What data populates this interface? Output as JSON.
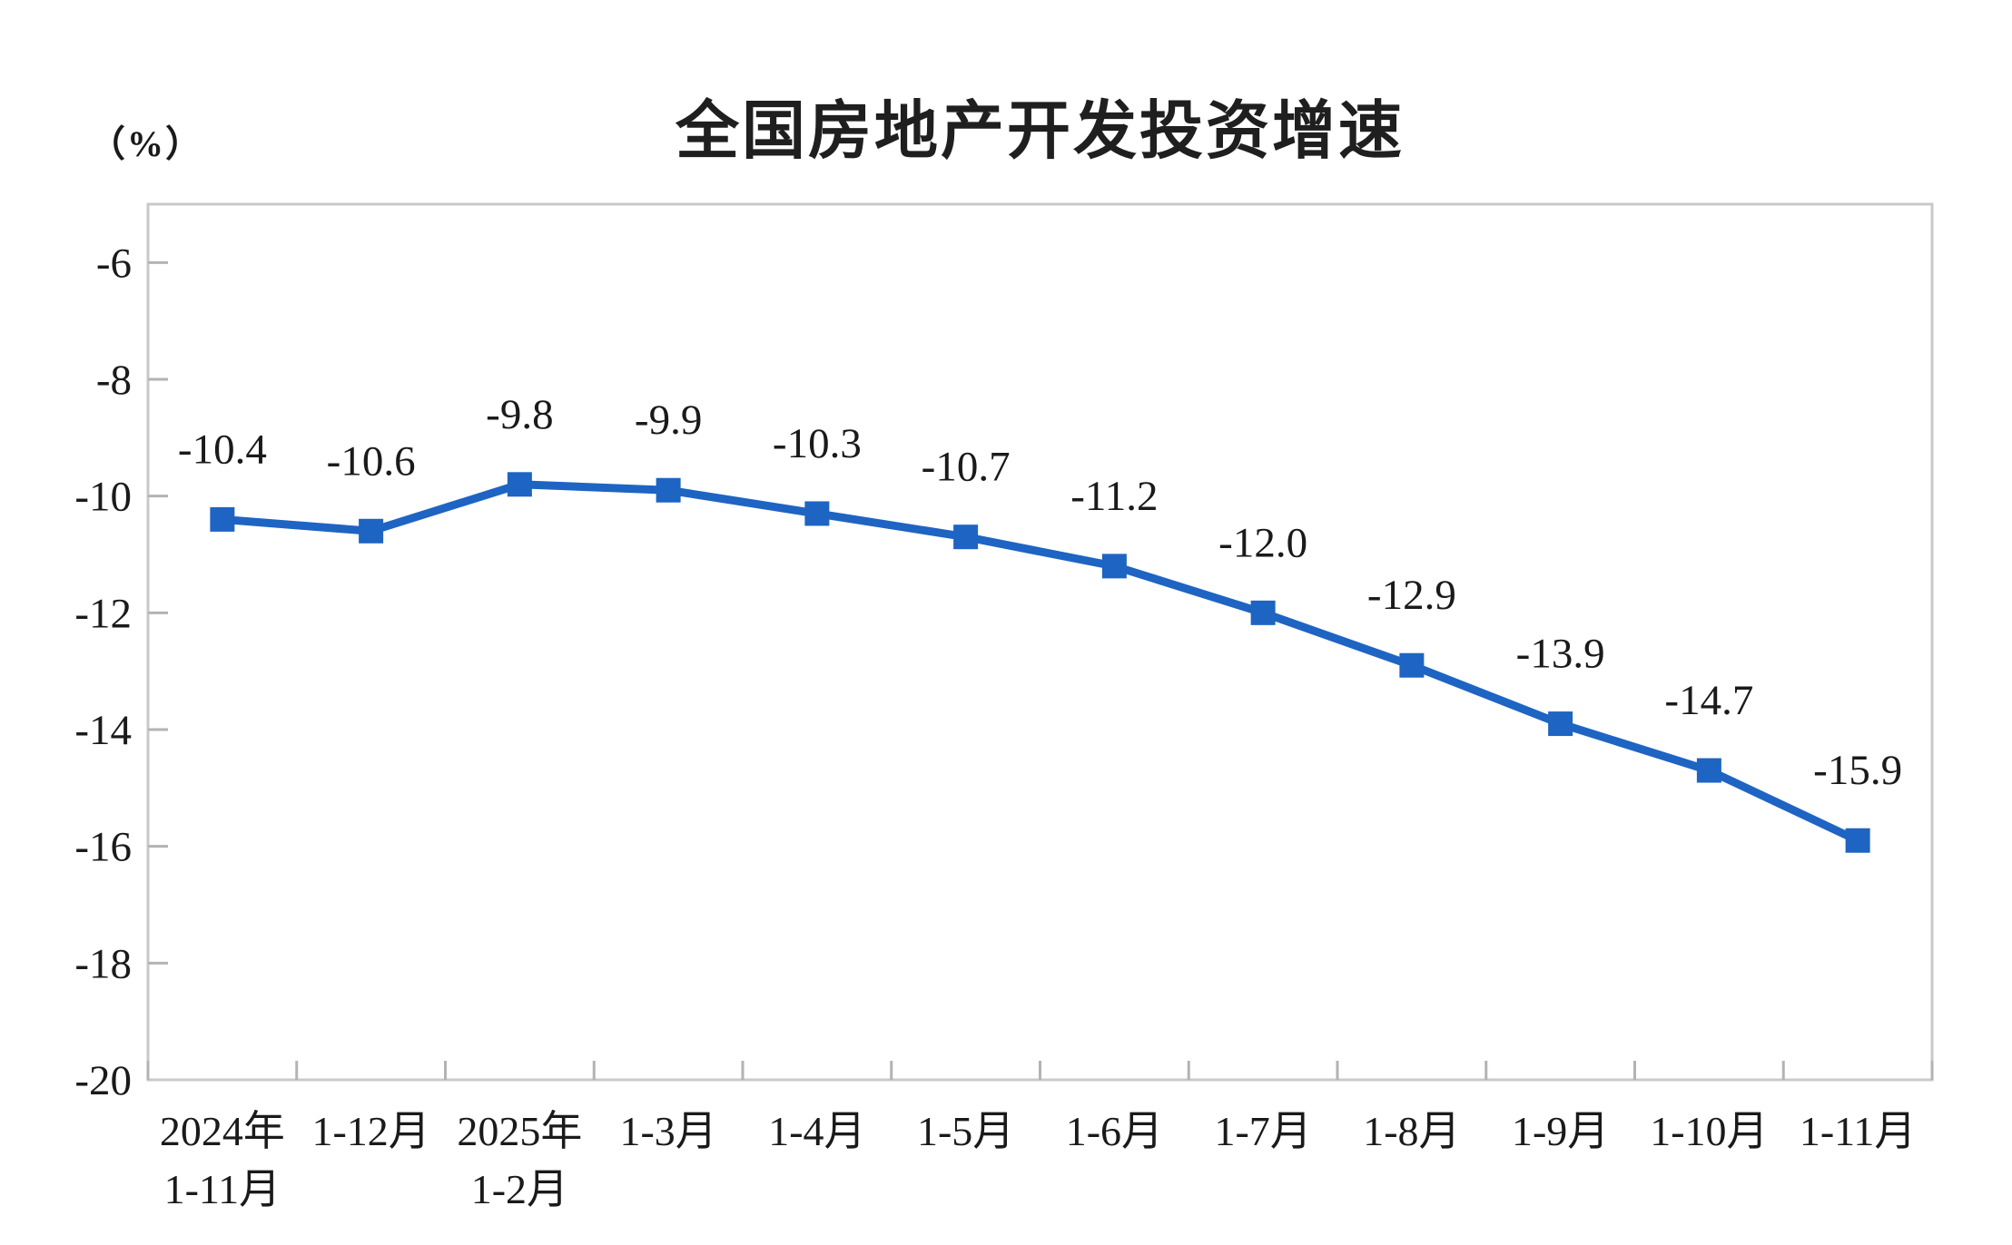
{
  "page": {
    "title": "全国房地产开发投资增速",
    "unit_label": "（%）"
  },
  "chart_data": {
    "type": "line",
    "title": "全国房地产开发投资增速",
    "ylabel": "（%）",
    "xlabel": "",
    "categories": [
      "2024年\n1-11月",
      "1-12月",
      "2025年\n1-2月",
      "1-3月",
      "1-4月",
      "1-5月",
      "1-6月",
      "1-7月",
      "1-8月",
      "1-9月",
      "1-10月",
      "1-11月"
    ],
    "values": [
      -10.4,
      -10.6,
      -9.8,
      -9.9,
      -10.3,
      -10.7,
      -11.2,
      -12.0,
      -12.9,
      -13.9,
      -14.7,
      -15.9
    ],
    "data_labels": [
      "-10.4",
      "-10.6",
      "-9.8",
      "-9.9",
      "-10.3",
      "-10.7",
      "-11.2",
      "-12.0",
      "-12.9",
      "-13.9",
      "-14.7",
      "-15.9"
    ],
    "y_tick_labels": [
      "-6",
      "-8",
      "-10",
      "-12",
      "-14",
      "-16",
      "-18",
      "-20"
    ],
    "y_ticks": [
      -6,
      -8,
      -10,
      -12,
      -14,
      -16,
      -18,
      -20
    ],
    "ylim": [
      -20,
      -5
    ],
    "grid": false,
    "legend_position": "none",
    "marker": "square",
    "colors": {
      "line": "#1E64C3",
      "marker": "#1E64C3",
      "plot_border": "#c9c9c9",
      "tick": "#b3b3b3",
      "text": "#1a1a1a"
    }
  }
}
